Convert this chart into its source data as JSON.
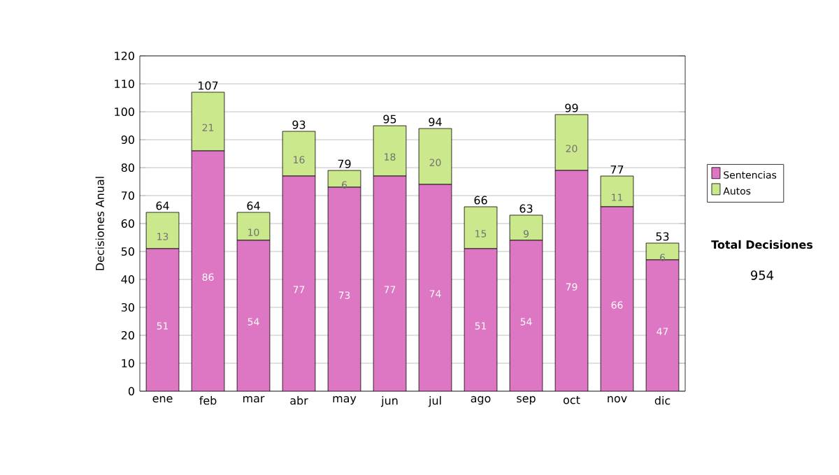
{
  "chart_data": {
    "type": "bar",
    "stacked": true,
    "ylabel": "Decisiones Anual",
    "categories": [
      "ene",
      "feb",
      "mar",
      "abr",
      "may",
      "jun",
      "jul",
      "ago",
      "sep",
      "oct",
      "nov",
      "dic"
    ],
    "series": [
      {
        "name": "Sentencias",
        "color": "#dd77c4",
        "values": [
          51,
          86,
          54,
          77,
          73,
          77,
          74,
          51,
          54,
          79,
          66,
          47
        ]
      },
      {
        "name": "Autos",
        "color": "#cce88c",
        "values": [
          13,
          21,
          10,
          16,
          6,
          18,
          20,
          15,
          9,
          20,
          11,
          6
        ]
      }
    ],
    "totals": [
      "64",
      "107",
      "64",
      "93",
      "79",
      "95",
      "94",
      "66",
      "63",
      "99",
      "77",
      "53"
    ],
    "data_labels": true,
    "ylim": [
      0,
      120
    ],
    "yticks": [
      0,
      10,
      20,
      30,
      40,
      50,
      60,
      70,
      80,
      90,
      100,
      110,
      120
    ],
    "grid": "y",
    "legend": "right",
    "annotations": [
      "Total Decisiones",
      "954"
    ]
  }
}
